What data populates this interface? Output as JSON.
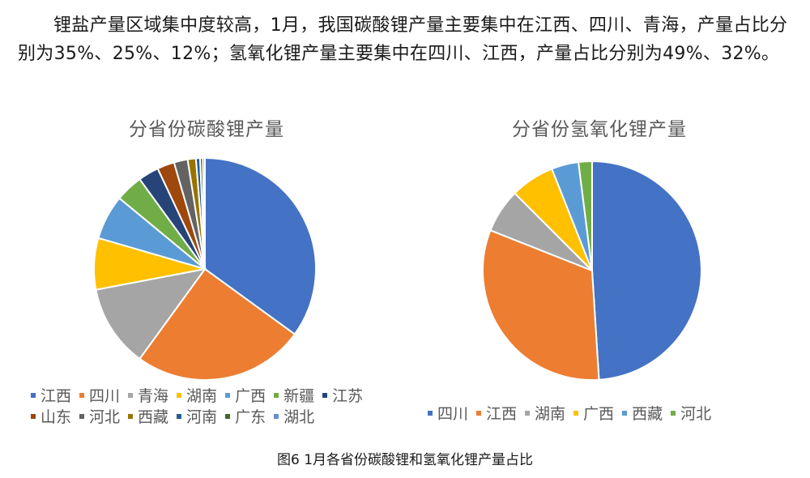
{
  "paragraph": "锂盐产量区域集中度较高，1月，我国碳酸锂产量主要集中在江西、四川、青海，产量占比分别为35%、25%、12%；氢氧化锂产量主要集中在四川、江西，产量占比分别为49%、32%。",
  "caption": "图6  1月各省份碳酸锂和氢氧化锂产量占比",
  "chart_data": [
    {
      "type": "pie",
      "title": "分省份碳酸锂产量",
      "categories": [
        "江西",
        "四川",
        "青海",
        "湖南",
        "广西",
        "新疆",
        "江苏",
        "山东",
        "河北",
        "西藏",
        "河南",
        "广东",
        "湖北"
      ],
      "values": [
        35,
        25,
        12,
        7.5,
        6.5,
        4,
        3,
        2.5,
        2,
        1.2,
        0.6,
        0.4,
        0.3
      ],
      "colors": [
        "#4472C4",
        "#ED7D31",
        "#A5A5A5",
        "#FFC000",
        "#5B9BD5",
        "#70AD47",
        "#264478",
        "#9E480E",
        "#636363",
        "#997300",
        "#255E91",
        "#43682B",
        "#698ED0"
      ],
      "legend": "bottom"
    },
    {
      "type": "pie",
      "title": "分省份氢氧化锂产量",
      "categories": [
        "四川",
        "江西",
        "湖南",
        "广西",
        "西藏",
        "河北"
      ],
      "values": [
        49,
        32,
        6.5,
        6.5,
        4,
        2
      ],
      "colors": [
        "#4472C4",
        "#ED7D31",
        "#A5A5A5",
        "#FFC000",
        "#5B9BD5",
        "#70AD47"
      ],
      "legend": "bottom"
    }
  ]
}
